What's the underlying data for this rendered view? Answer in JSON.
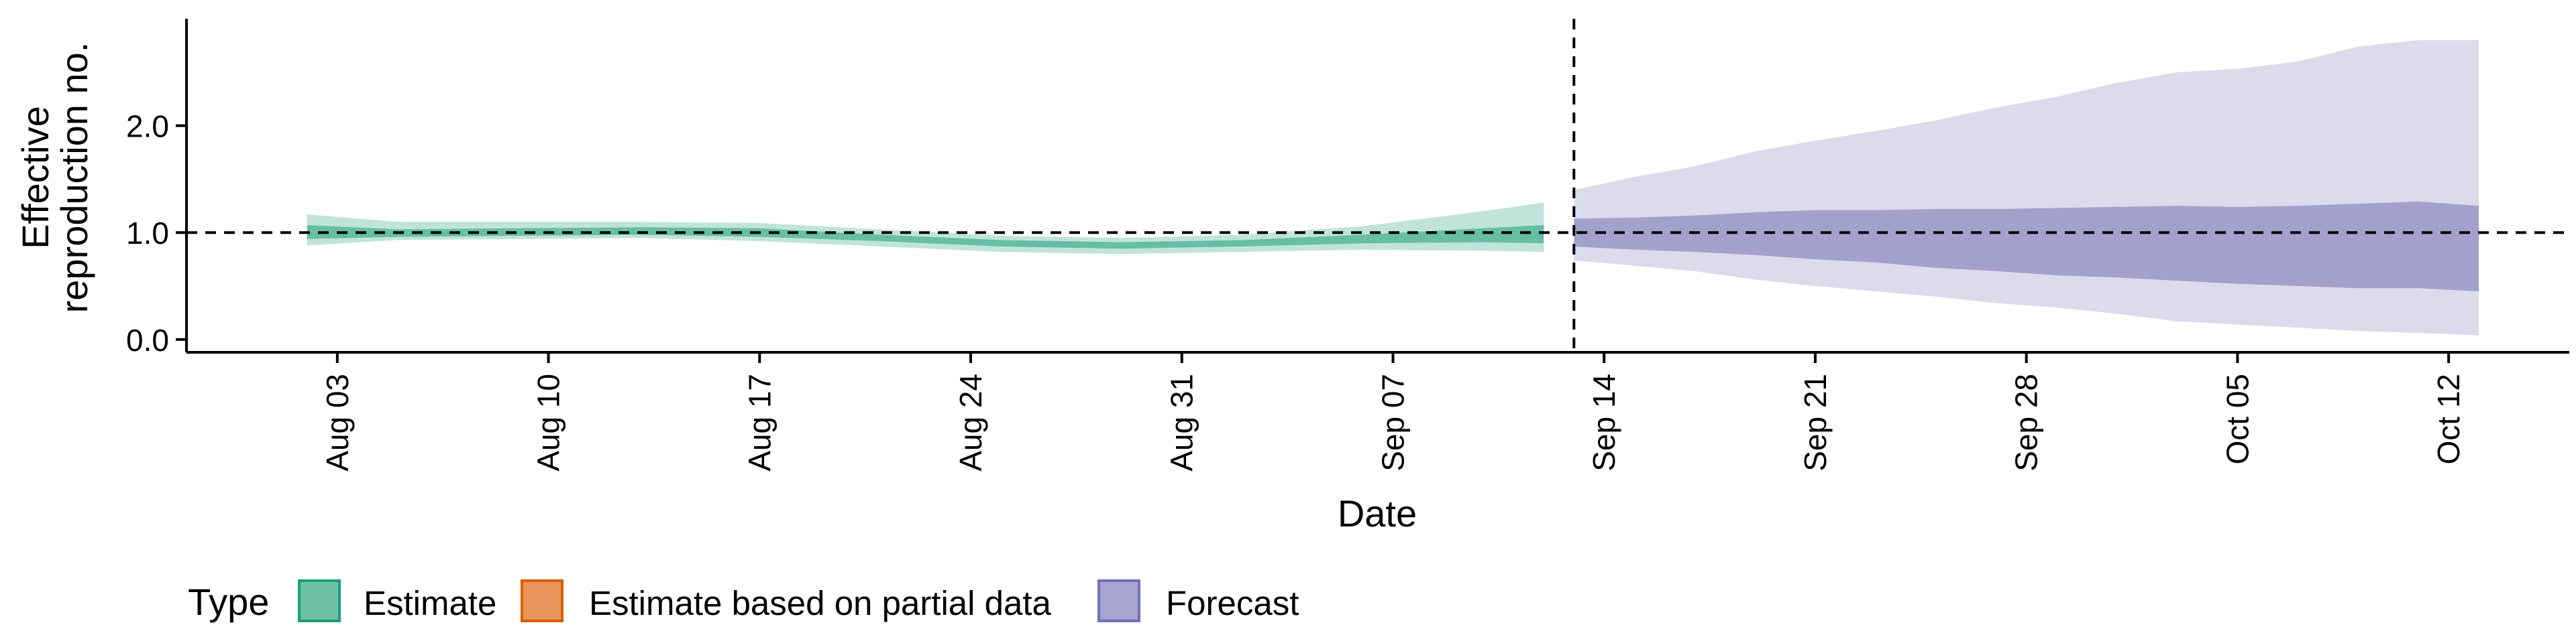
{
  "chart_data": {
    "type": "area",
    "xlabel": "Date",
    "ylabel": [
      "Effective",
      "reproduction no."
    ],
    "x_ticks": [
      "Aug 03",
      "Aug 10",
      "Aug 17",
      "Aug 24",
      "Aug 31",
      "Sep 07",
      "Sep 14",
      "Sep 21",
      "Sep 28",
      "Oct 05",
      "Oct 12"
    ],
    "y_ticks": [
      "0.0",
      "1.0",
      "2.0"
    ],
    "xlim": [
      "2020-07-29",
      "2020-10-16"
    ],
    "ylim": [
      -0.12,
      3.0
    ],
    "reference_line_y": 1.0,
    "reference_line_date": "2020-09-13",
    "grid": false,
    "legend": {
      "title": "Type",
      "position": "bottom",
      "entries": [
        {
          "label": "Estimate",
          "color": "#1b9e77",
          "fill": "#6cc0a3"
        },
        {
          "label": "Estimate based on partial data",
          "color": "#d95f02",
          "fill": "#e8955c"
        },
        {
          "label": "Forecast",
          "color": "#7570b3",
          "fill": "#a8a4d1"
        }
      ]
    },
    "series": [
      {
        "name": "Estimate",
        "color": "#1b9e77",
        "dates": [
          "2020-08-02",
          "2020-08-05",
          "2020-08-09",
          "2020-08-13",
          "2020-08-17",
          "2020-08-21",
          "2020-08-25",
          "2020-08-29",
          "2020-09-02",
          "2020-09-06",
          "2020-09-10",
          "2020-09-12"
        ],
        "outer_upper": [
          1.17,
          1.1,
          1.1,
          1.1,
          1.09,
          1.03,
          0.97,
          0.95,
          0.98,
          1.06,
          1.2,
          1.28
        ],
        "inner_upper": [
          1.07,
          1.03,
          1.04,
          1.05,
          1.04,
          0.98,
          0.93,
          0.91,
          0.93,
          0.98,
          1.04,
          1.07
        ],
        "inner_lower": [
          0.94,
          0.96,
          0.97,
          0.98,
          0.96,
          0.92,
          0.87,
          0.85,
          0.87,
          0.9,
          0.91,
          0.9
        ],
        "outer_lower": [
          0.88,
          0.93,
          0.94,
          0.95,
          0.92,
          0.87,
          0.82,
          0.8,
          0.82,
          0.84,
          0.83,
          0.82
        ]
      },
      {
        "name": "Forecast",
        "color": "#7570b3",
        "dates": [
          "2020-09-13",
          "2020-09-15",
          "2020-09-17",
          "2020-09-19",
          "2020-09-21",
          "2020-09-23",
          "2020-09-25",
          "2020-09-27",
          "2020-09-29",
          "2020-10-01",
          "2020-10-03",
          "2020-10-05",
          "2020-10-07",
          "2020-10-09",
          "2020-10-11",
          "2020-10-13"
        ],
        "outer_upper": [
          1.4,
          1.52,
          1.62,
          1.76,
          1.86,
          1.95,
          2.05,
          2.17,
          2.27,
          2.4,
          2.5,
          2.53,
          2.6,
          2.74,
          2.8,
          2.8
        ],
        "inner_upper": [
          1.13,
          1.14,
          1.16,
          1.19,
          1.21,
          1.21,
          1.22,
          1.22,
          1.23,
          1.24,
          1.25,
          1.24,
          1.25,
          1.27,
          1.29,
          1.25
        ],
        "inner_lower": [
          0.87,
          0.84,
          0.82,
          0.79,
          0.75,
          0.72,
          0.67,
          0.64,
          0.6,
          0.58,
          0.55,
          0.52,
          0.5,
          0.48,
          0.48,
          0.45
        ],
        "outer_lower": [
          0.74,
          0.69,
          0.64,
          0.56,
          0.5,
          0.45,
          0.4,
          0.34,
          0.3,
          0.24,
          0.17,
          0.14,
          0.11,
          0.08,
          0.06,
          0.04
        ]
      }
    ]
  }
}
